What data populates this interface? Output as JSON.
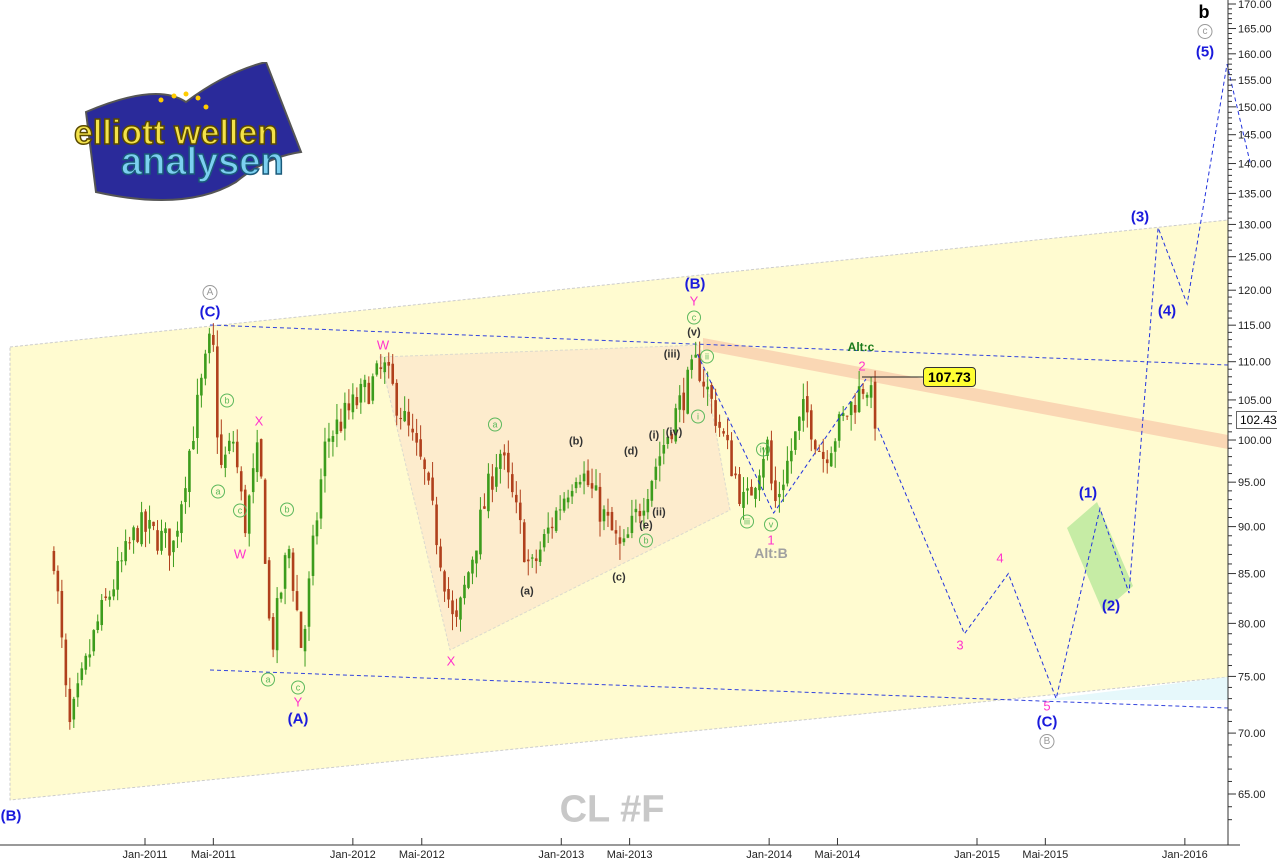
{
  "chart_data": {
    "type": "candlestick",
    "symbol": "CL #F",
    "y_scale": "log",
    "ylim": [
      60,
      170
    ],
    "y_ticks": [
      65,
      70,
      75,
      80,
      85,
      90,
      95,
      100,
      105,
      110,
      115,
      120,
      125,
      130,
      135,
      140,
      145,
      150,
      155,
      160,
      165,
      170
    ],
    "x_ticks": [
      "Jan-2011",
      "Mai-2011",
      "Jan-2012",
      "Mai-2012",
      "Jan-2013",
      "Mai-2013",
      "Jan-2014",
      "Mai-2014",
      "Jan-2015",
      "Mai-2015",
      "Jan-2016"
    ],
    "x_tick_dates": [
      "2011-01-01",
      "2011-05-01",
      "2012-01-01",
      "2012-05-01",
      "2013-01-01",
      "2013-05-01",
      "2014-01-01",
      "2014-05-01",
      "2015-01-01",
      "2015-05-01",
      "2016-01-01"
    ],
    "grid": false,
    "last_price": "102.43",
    "callout_price": "107.73",
    "swing_points": [
      [
        "2010-07-25",
        87
      ],
      [
        "2010-08-20",
        70
      ],
      [
        "2010-10-10",
        80
      ],
      [
        "2010-12-20",
        90
      ],
      [
        "2011-02-20",
        88
      ],
      [
        "2011-04-29",
        114
      ],
      [
        "2011-05-12",
        96
      ],
      [
        "2011-06-05",
        100
      ],
      [
        "2011-06-25",
        90
      ],
      [
        "2011-07-20",
        99
      ],
      [
        "2011-08-10",
        77
      ],
      [
        "2011-09-10",
        88
      ],
      [
        "2011-10-04",
        77
      ],
      [
        "2011-11-15",
        100
      ],
      [
        "2012-02-25",
        109
      ],
      [
        "2012-05-05",
        96
      ],
      [
        "2012-06-28",
        79
      ],
      [
        "2012-09-14",
        99
      ],
      [
        "2012-11-08",
        85
      ],
      [
        "2013-01-30",
        97
      ],
      [
        "2013-04-18",
        87
      ],
      [
        "2013-06-10",
        96
      ],
      [
        "2013-08-28",
        110
      ],
      [
        "2013-11-20",
        92
      ],
      [
        "2013-12-28",
        100
      ],
      [
        "2014-01-09",
        92
      ],
      [
        "2014-03-05",
        104
      ],
      [
        "2014-04-05",
        98
      ],
      [
        "2014-06-20",
        107.5
      ],
      [
        "2014-07-11",
        101.5
      ]
    ],
    "forecast_path": [
      [
        "2014-07-11",
        101.5
      ],
      [
        "2014-12-10",
        79
      ],
      [
        "2015-02-25",
        85
      ],
      [
        "2015-05-20",
        73
      ],
      [
        "2015-08-05",
        92
      ],
      [
        "2015-09-25",
        83
      ],
      [
        "2015-11-15",
        129.5
      ],
      [
        "2016-01-05",
        118
      ],
      [
        "2016-03-15",
        158
      ],
      [
        "2016-04-25",
        140
      ]
    ],
    "prior_path": [
      [
        "2013-08-28",
        111
      ],
      [
        "2014-01-09",
        91.5
      ],
      [
        "2014-06-20",
        107.7
      ]
    ],
    "colors": {
      "up": "#3c9c1c",
      "down": "#b0401c",
      "forecast": "#2233dd",
      "channel_fill": "#fffbd0",
      "triangle_fill": "#fde6cc",
      "target_box": "#b8e89a"
    }
  },
  "labels": {
    "b_top": "b",
    "c_top": "c",
    "w5": "(5)",
    "w3": "(3)",
    "w4": "(4)",
    "w1": "(1)",
    "w2": "(2)",
    "C_end": "(C)",
    "B_end": "B",
    "m5": "5",
    "m3": "3",
    "m4": "4",
    "m2": "2",
    "alt_c": "Alt:c",
    "m1": "1",
    "alt_b": "Alt:B",
    "v_c": "v",
    "iii_c": "iii",
    "iv_c": "iv",
    "i_c": "i",
    "ii_c": "ii",
    "B_mid": "(B)",
    "Y_mid": "Y",
    "c_mid": "c",
    "v_p": "(v)",
    "iii_p": "(iii)",
    "iv_p": "(iv)",
    "i_p": "(i)",
    "d_p": "(d)",
    "ii_p": "(ii)",
    "e_p": "(e)",
    "b_mid": "b",
    "c_p": "(c)",
    "b_p": "(b)",
    "a_p": "(a)",
    "a_mid": "a",
    "W2": "W",
    "X2": "X",
    "A_top": "A",
    "C_top": "(C)",
    "b1": "b",
    "a1": "a",
    "X1": "X",
    "c1": "c",
    "W1": "W",
    "b2": "b",
    "a2": "a",
    "c2": "c",
    "Y1": "Y",
    "A_low": "(A)",
    "B_low": "(B)"
  },
  "logo": {
    "line1": "elliott wellen",
    "line2": "analysen"
  }
}
